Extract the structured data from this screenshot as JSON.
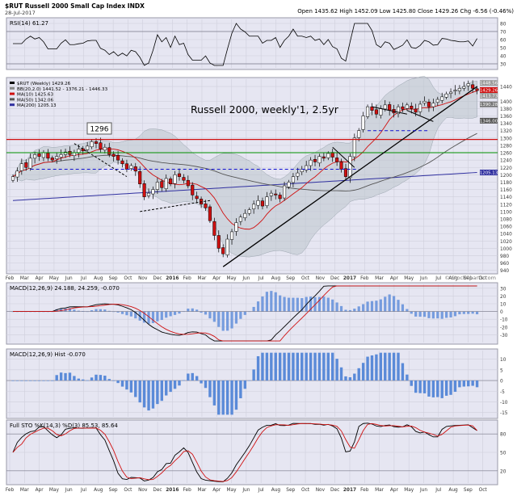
{
  "header": {
    "symbol_title": "$RUT Russell 2000 Small Cap Index  INDX",
    "date": "28-Jul-2017",
    "quote": "Open 1435.62  High 1452.09  Low 1425.80  Close 1429.26  Chg -6.56 (-0.46%)",
    "watermark": "© StockCharts.com"
  },
  "annotations": {
    "chart_note": "Russell 2000, weekly'1, 2.5yr",
    "level_label": "1296"
  },
  "colors": {
    "panel_bg": "#e6e6f2",
    "candle_up": "#ffffff",
    "candle_down": "#d01010",
    "ma20": "#d01010",
    "ma50": "#555555",
    "ma200": "#3030a0",
    "band": "#bcc4cc",
    "macd_line": "#000000",
    "signal_line": "#d01010",
    "histogram": "#5a8ad8",
    "support_red": "#d01010",
    "support_green": "#009000",
    "dashed_blue": "#1010d0"
  },
  "chart_data": [
    {
      "type": "line",
      "panel": "rsi",
      "legend": "RSI(14) 61.27",
      "y_ticks": [
        "80",
        "70",
        "60",
        "50",
        "40",
        "30"
      ],
      "ylim": [
        25,
        85
      ],
      "reference_levels": [
        70,
        30
      ],
      "last_value": 61.27
    },
    {
      "type": "candlestick",
      "panel": "price",
      "legend": [
        "$RUT (Weekly) 1429.26",
        "BB(20,2.0) 1441.52 - 1376.21 - 1446.33",
        "MA(10) 1425.63",
        "MA(50) 1342.06",
        "MA(200) 1205.13"
      ],
      "y_ticks": [
        "1440",
        "1400",
        "1380",
        "1360",
        "1340",
        "1320",
        "1300",
        "1280",
        "1260",
        "1240",
        "1220",
        "1200",
        "1180",
        "1160",
        "1140",
        "1120",
        "1100",
        "1080",
        "1060",
        "1040",
        "1020",
        "1000",
        "980",
        "960",
        "940"
      ],
      "price_badges": [
        "1448.56",
        "1429.26",
        "1413.73",
        "1390.28",
        "1346.00",
        "1205.13"
      ],
      "ylim": [
        935,
        1460
      ],
      "x_ticks": [
        "Feb",
        "Mar",
        "Apr",
        "May",
        "Jun",
        "Jul",
        "Aug",
        "Sep",
        "Oct",
        "Nov",
        "Dec",
        "2016",
        "Feb",
        "Mar",
        "Apr",
        "May",
        "Jun",
        "Jul",
        "Aug",
        "Sep",
        "Oct",
        "Nov",
        "Dec",
        "2017",
        "Feb",
        "Mar",
        "Apr",
        "May",
        "Jun",
        "Jul",
        "Aug",
        "Sep",
        "Oct"
      ],
      "support_levels": [
        1296,
        1260,
        1200
      ],
      "closes": [
        1195,
        1210,
        1230,
        1220,
        1245,
        1255,
        1250,
        1260,
        1245,
        1240,
        1250,
        1255,
        1262,
        1255,
        1260,
        1270,
        1265,
        1278,
        1290,
        1285,
        1270,
        1275,
        1255,
        1250,
        1240,
        1230,
        1215,
        1225,
        1210,
        1175,
        1140,
        1150,
        1160,
        1180,
        1165,
        1190,
        1175,
        1200,
        1195,
        1185,
        1170,
        1145,
        1135,
        1120,
        1110,
        1075,
        1035,
        1000,
        985,
        1025,
        1045,
        1070,
        1085,
        1095,
        1105,
        1120,
        1130,
        1115,
        1140,
        1150,
        1145,
        1135,
        1170,
        1180,
        1195,
        1205,
        1215,
        1225,
        1240,
        1235,
        1250,
        1245,
        1258,
        1248,
        1235,
        1215,
        1195,
        1250,
        1300,
        1320,
        1360,
        1385,
        1375,
        1365,
        1380,
        1390,
        1375,
        1368,
        1385,
        1378,
        1390,
        1380,
        1370,
        1392,
        1400,
        1385,
        1395,
        1405,
        1412,
        1420,
        1425,
        1430,
        1435,
        1440,
        1448,
        1435,
        1429
      ],
      "ma10_last": 1425.63,
      "ma50_last": 1342.06,
      "ma200_last": 1205.13
    },
    {
      "type": "line",
      "panel": "macd",
      "legend": "MACD(12,26,9) 24.188, 24.259, -0.070",
      "y_ticks": [
        "30",
        "20",
        "10",
        "0",
        "-10",
        "-20",
        "-30"
      ],
      "ylim": [
        -40,
        35
      ],
      "series": [
        {
          "name": "MACD(12,26,9)",
          "last": 24.188
        },
        {
          "name": "Signal",
          "last": 24.259
        },
        {
          "name": "Histogram",
          "last": -0.07
        }
      ]
    },
    {
      "type": "bar",
      "panel": "histogram",
      "legend": "MACD(12,26,9) Hist -0.070",
      "y_ticks": [
        "10",
        "5",
        "0",
        "-5",
        "-10",
        "-15"
      ],
      "ylim": [
        -17,
        14
      ],
      "last_value": -0.07
    },
    {
      "type": "line",
      "panel": "stochastics",
      "legend": "Full STO %K(14,3) %D(3) 85.53, 85.64",
      "y_ticks": [
        "80",
        "50",
        "20"
      ],
      "ylim": [
        0,
        100
      ],
      "reference_levels": [
        80,
        20
      ],
      "series": [
        {
          "name": "%K(14,3)",
          "last": 85.53
        },
        {
          "name": "%D(3)",
          "last": 85.64
        }
      ]
    }
  ]
}
